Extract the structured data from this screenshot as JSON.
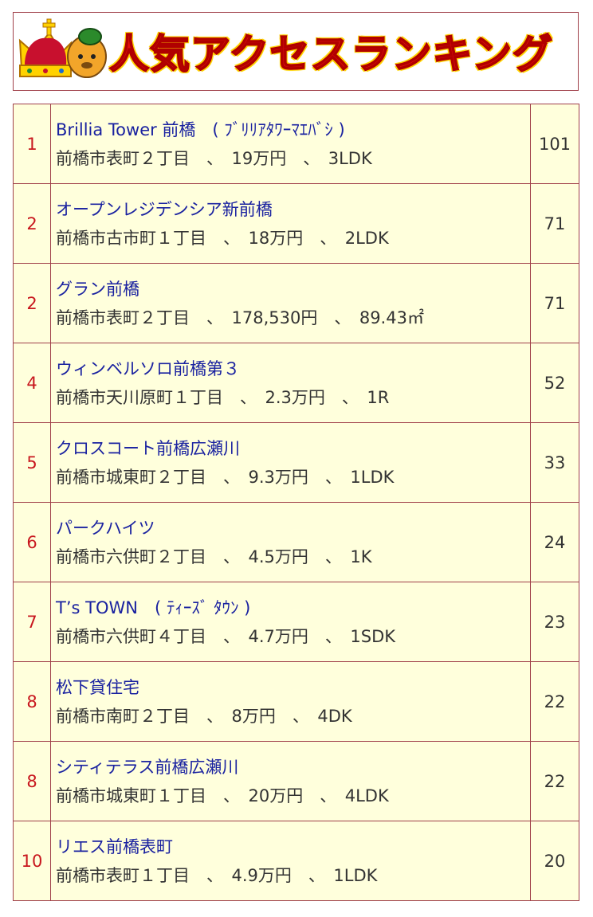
{
  "header": {
    "title": "人気アクセスランキング"
  },
  "ranking": [
    {
      "rank": 1,
      "name": "Brillia Tower 前橋　( ﾌﾞﾘﾘｱﾀﾜｰﾏｴﾊﾞｼ )",
      "detail": "前橋市表町２丁目　、　19万円　、　3LDK",
      "count": 101
    },
    {
      "rank": 2,
      "name": "オープンレジデンシア新前橋",
      "detail": "前橋市古市町１丁目　、　18万円　、　2LDK",
      "count": 71
    },
    {
      "rank": 2,
      "name": "グラン前橋",
      "detail": "前橋市表町２丁目　、　178,530円　、　89.43㎡",
      "count": 71
    },
    {
      "rank": 4,
      "name": "ウィンベルソロ前橋第３",
      "detail": "前橋市天川原町１丁目　、　2.3万円　、　1R",
      "count": 52
    },
    {
      "rank": 5,
      "name": "クロスコート前橋広瀬川",
      "detail": "前橋市城東町２丁目　、　9.3万円　、　1LDK",
      "count": 33
    },
    {
      "rank": 6,
      "name": "パークハイツ",
      "detail": "前橋市六供町２丁目　、　4.5万円　、　1K",
      "count": 24
    },
    {
      "rank": 7,
      "name": "T’s TOWN　( ﾃｨｰｽﾞ ﾀｳﾝ )",
      "detail": "前橋市六供町４丁目　、　4.7万円　、　1SDK",
      "count": 23
    },
    {
      "rank": 8,
      "name": "松下貸住宅",
      "detail": "前橋市南町２丁目　、　8万円　、　4DK",
      "count": 22
    },
    {
      "rank": 8,
      "name": "シティテラス前橋広瀬川",
      "detail": "前橋市城東町１丁目　、　20万円　、　4LDK",
      "count": 22
    },
    {
      "rank": 10,
      "name": "リエス前橋表町",
      "detail": "前橋市表町１丁目　、　4.9万円　、　1LDK",
      "count": 20
    }
  ]
}
